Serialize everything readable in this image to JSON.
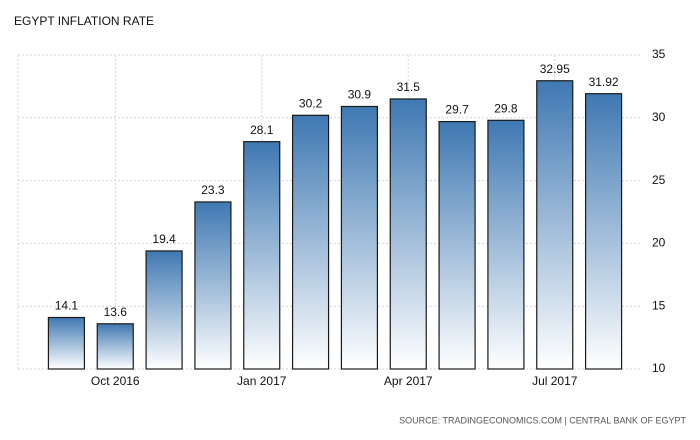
{
  "chart_data": {
    "type": "bar",
    "title": "EGYPT INFLATION RATE",
    "categories": [
      null,
      "Oct 2016",
      null,
      null,
      "Jan 2017",
      null,
      null,
      "Apr 2017",
      null,
      null,
      "Jul 2017",
      null
    ],
    "values": [
      14.1,
      13.6,
      19.4,
      23.3,
      28.1,
      30.2,
      30.9,
      31.5,
      29.7,
      29.8,
      32.95,
      31.92
    ],
    "color": "#3f78b2",
    "ylim": [
      10,
      35
    ],
    "yticks": [
      10,
      15,
      20,
      25,
      30,
      35
    ],
    "grid": true,
    "source": "SOURCE: TRADINGECONOMICS.COM | CENTRAL BANK OF EGYPT"
  }
}
